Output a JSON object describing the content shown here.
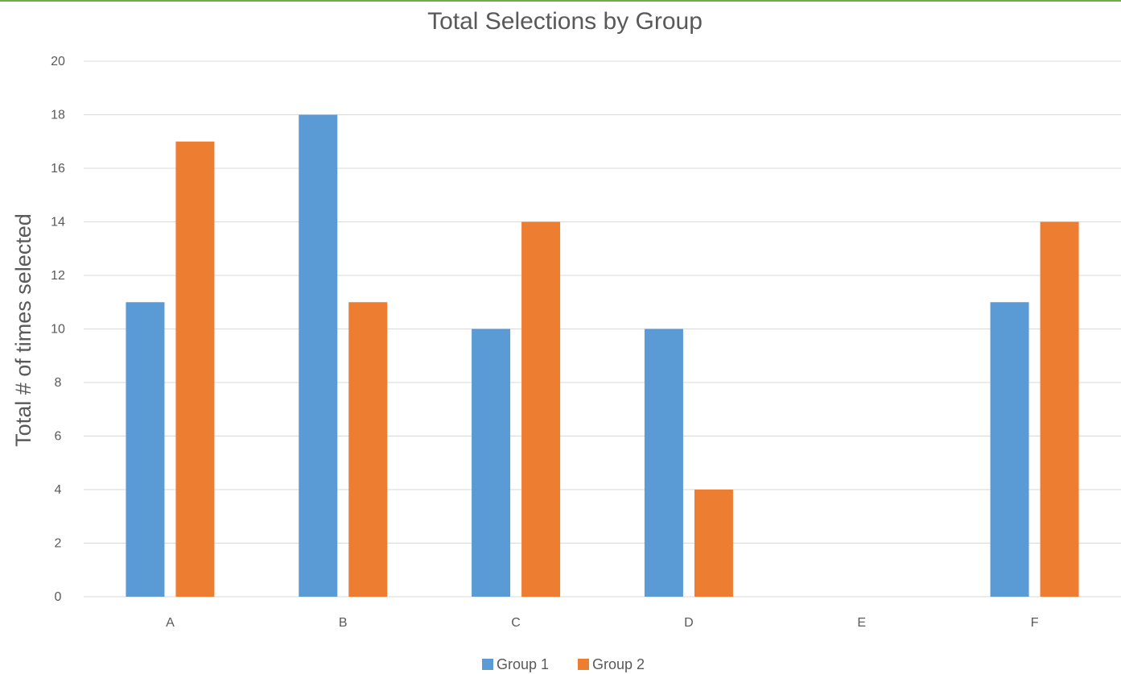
{
  "chart_data": {
    "type": "bar",
    "title": "Total Selections by Group",
    "xlabel": "",
    "ylabel": "Total # of times selected",
    "categories": [
      "A",
      "B",
      "C",
      "D",
      "E",
      "F"
    ],
    "series": [
      {
        "name": "Group 1",
        "values": [
          11,
          18,
          10,
          10,
          0,
          11
        ],
        "color": "#5b9bd5"
      },
      {
        "name": "Group 2",
        "values": [
          17,
          11,
          14,
          4,
          0,
          14
        ],
        "color": "#ed7d31"
      }
    ],
    "ylim": [
      0,
      20
    ],
    "yticks": [
      0,
      2,
      4,
      6,
      8,
      10,
      12,
      14,
      16,
      18,
      20
    ],
    "grid": true,
    "legend": "bottom-center"
  },
  "colors": {
    "accent": "#70ad47",
    "gridline": "#d9d9d9",
    "text": "#595959"
  }
}
